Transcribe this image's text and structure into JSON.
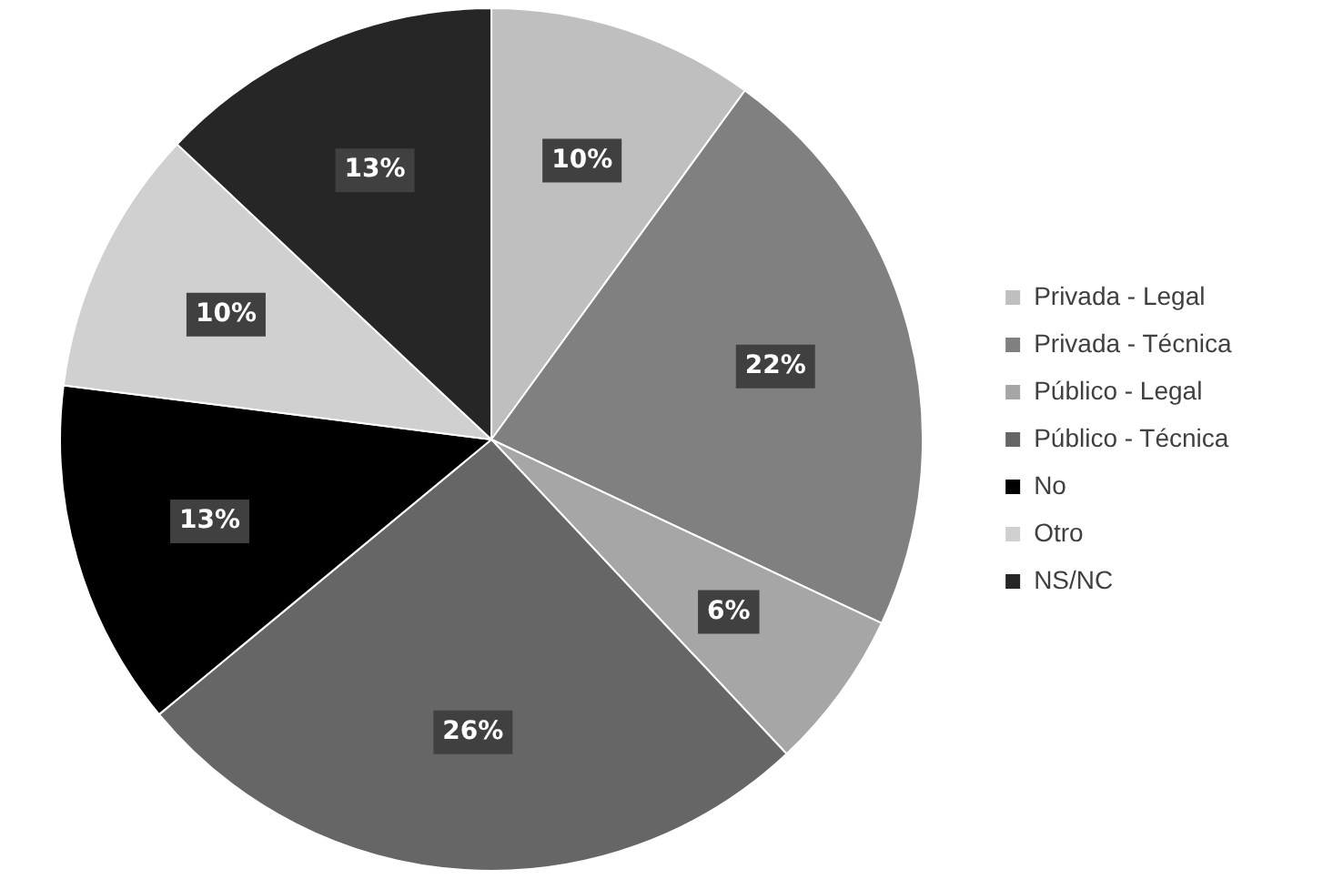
{
  "chart_data": {
    "type": "pie",
    "categories": [
      "Privada - Legal",
      "Privada - Técnica",
      "Público - Legal",
      "Público - Técnica",
      "No",
      "Otro",
      "NS/NC"
    ],
    "values": [
      10,
      22,
      6,
      26,
      13,
      10,
      13
    ],
    "colors": [
      "#bfbfbf",
      "#808080",
      "#a6a6a6",
      "#666666",
      "#000000",
      "#d0d0d0",
      "#262626"
    ],
    "value_labels": [
      "10%",
      "22%",
      "6%",
      "26%",
      "13%",
      "10%",
      "13%"
    ],
    "legend": "right"
  }
}
